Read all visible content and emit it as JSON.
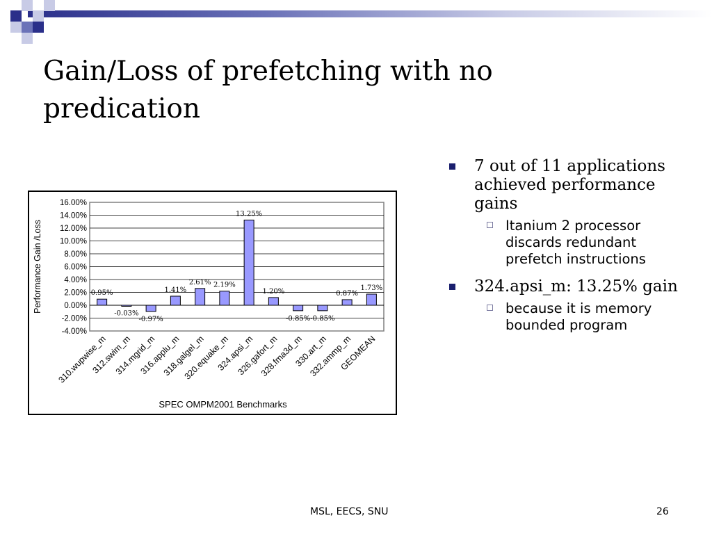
{
  "slide": {
    "title": "Gain/Loss of prefetching with no predication",
    "footer_center": "MSL, EECS, SNU",
    "page_number": "26"
  },
  "bullets": [
    {
      "text": "7 out of 11 applications achieved performance gains",
      "sub": [
        "Itanium 2 processor discards redundant prefetch instructions"
      ]
    },
    {
      "text": "324.apsi_m: 13.25% gain",
      "sub": [
        "because it is memory bounded program"
      ]
    }
  ],
  "colors": {
    "bar_fill": "#9999ff",
    "bullet_marker": "#1a1f6e",
    "accent_bar": "#2a2f8a"
  },
  "chart_data": {
    "type": "bar",
    "xlabel": "SPEC OMPM2001 Benchmarks",
    "ylabel": "Performance Gain /Loss",
    "ylim": [
      -4,
      16
    ],
    "yticks": [
      "16.00%",
      "14.00%",
      "12.00%",
      "10.00%",
      "8.00%",
      "6.00%",
      "4.00%",
      "2.00%",
      "0.00%",
      "-2.00%",
      "-4.00%"
    ],
    "categories": [
      "310.wupwise_m",
      "312.swim_m",
      "314.mgrid_m",
      "316.applu_m",
      "318.galgel_m",
      "320.equake_m",
      "324.apsi_m",
      "326.gafort_m",
      "328.fma3d_m",
      "330.art_m",
      "332.ammp_m",
      "GEOMEAN"
    ],
    "values": [
      0.95,
      -0.03,
      -0.97,
      1.41,
      2.61,
      2.19,
      13.25,
      1.2,
      -0.85,
      -0.85,
      0.87,
      1.73
    ],
    "data_labels": [
      "0.95%",
      "-0.03%",
      "-0.97%",
      "1.41%",
      "2.61%",
      "2.19%",
      "13.25%",
      "1.20%",
      "-0.85%",
      "-0.85%",
      "0.87%",
      "1.73%"
    ],
    "grid": true
  }
}
